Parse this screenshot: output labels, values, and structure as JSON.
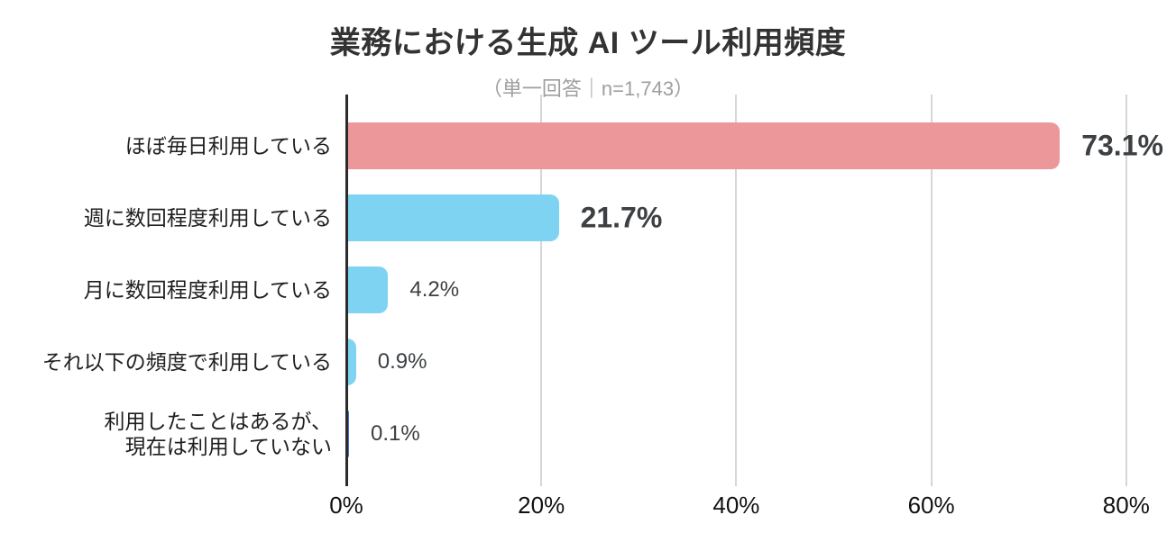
{
  "chart_data": {
    "type": "bar",
    "orientation": "horizontal",
    "title": "業務における生成 AI ツール利用頻度",
    "subtitle": "（単一回答｜n=1,743）",
    "categories": [
      "ほぼ毎日利用している",
      "週に数回程度利用している",
      "月に数回程度利用している",
      "それ以下の頻度で利用している",
      "利用したことはあるが、\n現在は利用していない"
    ],
    "values": [
      73.1,
      21.7,
      4.2,
      0.9,
      0.1
    ],
    "value_labels": [
      "73.1%",
      "21.7%",
      "4.2%",
      "0.9%",
      "0.1%"
    ],
    "emphasized": [
      true,
      true,
      false,
      false,
      false
    ],
    "bar_colors": [
      "#ec989a",
      "#7fd3f2",
      "#7fd3f2",
      "#7fd3f2",
      "#3c6fd8"
    ],
    "x_tick_values": [
      0,
      20,
      40,
      60,
      80
    ],
    "x_tick_labels": [
      "0%",
      "20%",
      "40%",
      "60%",
      "80%"
    ],
    "xlim": [
      0,
      80
    ],
    "grid": true,
    "legend_position": "none",
    "colors": {
      "grid": "#d6d6d6",
      "axis": "#2b2b2b",
      "title": "#333333",
      "subtitle": "#9e9e9e",
      "value_text": "#3c4043",
      "category_text": "#1f1f1f",
      "tick_text": "#111111"
    }
  }
}
